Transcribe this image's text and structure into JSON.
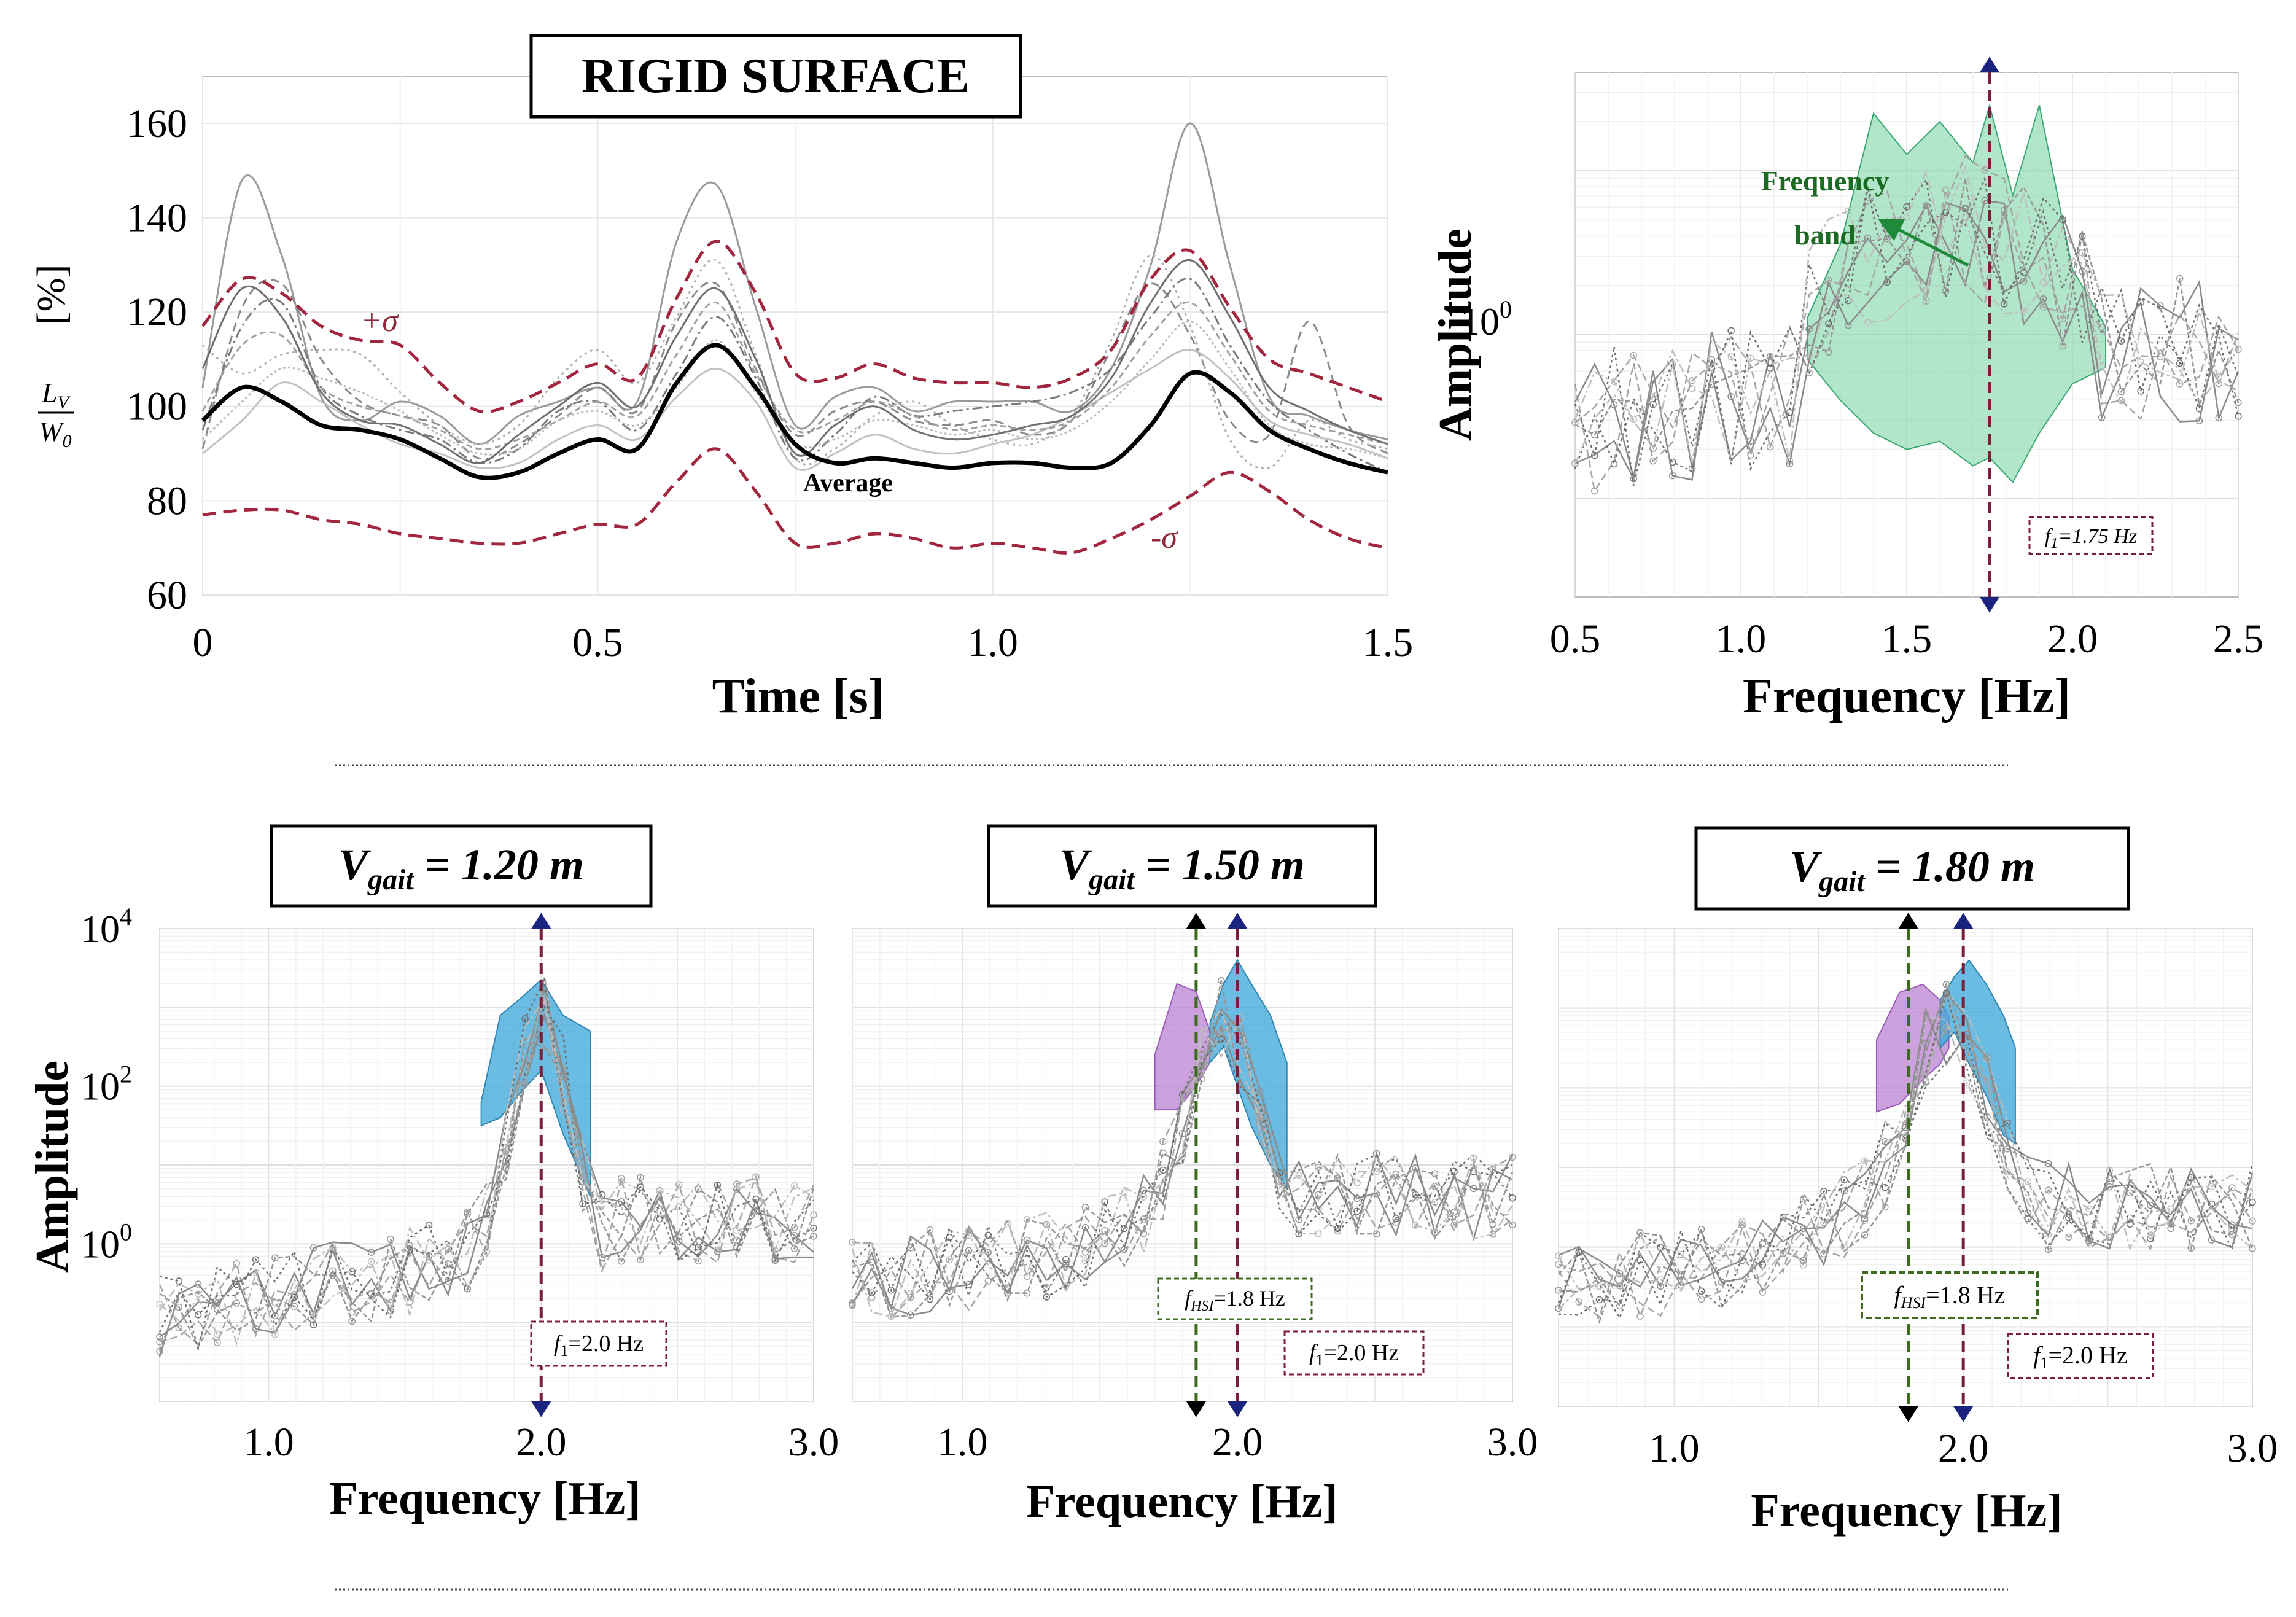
{
  "chart_data": [
    {
      "id": "time-history",
      "type": "line",
      "title": "RIGID SURFACE",
      "xlabel": "Time [s]",
      "ylabel_main": "L_V / W_0",
      "ylabel_num": "L",
      "ylabel_num_sub": "V",
      "ylabel_den": "W",
      "ylabel_den_sub": "0",
      "ylabel_unit": "[%]",
      "xlim": [
        0,
        1.5
      ],
      "ylim": [
        60,
        170
      ],
      "xticks": [
        "0",
        "0.5",
        "1.0",
        "1.5"
      ],
      "xtick_values": [
        0,
        0.5,
        1.0,
        1.5
      ],
      "yticks": [
        "60",
        "80",
        "100",
        "120",
        "140",
        "160"
      ],
      "ytick_values": [
        60,
        80,
        100,
        120,
        140,
        160
      ],
      "x": [
        0,
        0.05,
        0.1,
        0.15,
        0.2,
        0.25,
        0.3,
        0.35,
        0.4,
        0.45,
        0.5,
        0.55,
        0.6,
        0.65,
        0.7,
        0.75,
        0.8,
        0.85,
        0.9,
        0.95,
        1.0,
        1.05,
        1.1,
        1.15,
        1.2,
        1.25,
        1.3,
        1.35,
        1.4,
        1.45,
        1.5
      ],
      "average": {
        "name": "Average",
        "values": [
          97,
          104,
          101,
          96,
          95,
          93,
          89,
          85,
          86,
          90,
          93,
          91,
          105,
          113,
          104,
          92,
          88,
          89,
          88,
          87,
          88,
          88,
          87,
          88,
          96,
          107,
          103,
          95,
          91,
          88,
          86
        ]
      },
      "upper": {
        "name": "+σ",
        "values": [
          117,
          127,
          124,
          117,
          114,
          113,
          105,
          99,
          101,
          105,
          109,
          106,
          123,
          135,
          124,
          107,
          106,
          109,
          106,
          105,
          105,
          104,
          106,
          112,
          127,
          133,
          121,
          110,
          107,
          104,
          101
        ]
      },
      "lower": {
        "name": "-σ",
        "values": [
          77,
          78,
          78,
          76,
          75,
          73,
          72,
          71,
          71,
          73,
          75,
          75,
          84,
          91,
          82,
          71,
          71,
          73,
          72,
          70,
          71,
          70,
          69,
          72,
          76,
          81,
          86,
          82,
          76,
          72,
          70
        ]
      },
      "gray_series": [
        [
          104,
          148,
          132,
          102,
          97,
          101,
          98,
          92,
          98,
          101,
          104,
          101,
          135,
          147,
          121,
          96,
          102,
          104,
          99,
          101,
          101,
          101,
          99,
          108,
          130,
          160,
          130,
          102,
          98,
          95,
          93
        ],
        [
          91,
          121,
          126,
          110,
          101,
          98,
          96,
          89,
          92,
          98,
          104,
          99,
          118,
          126,
          108,
          94,
          99,
          101,
          97,
          96,
          97,
          94,
          97,
          112,
          126,
          115,
          97,
          94,
          118,
          96,
          90
        ],
        [
          113,
          107,
          111,
          112,
          111,
          103,
          96,
          92,
          96,
          106,
          112,
          105,
          119,
          131,
          111,
          89,
          91,
          98,
          101,
          96,
          93,
          92,
          98,
          114,
          132,
          117,
          93,
          87,
          97,
          93,
          91
        ],
        [
          95,
          117,
          122,
          104,
          98,
          95,
          93,
          88,
          91,
          99,
          101,
          95,
          107,
          119,
          106,
          89,
          94,
          102,
          98,
          99,
          100,
          101,
          103,
          108,
          119,
          127,
          113,
          101,
          95,
          90,
          86
        ],
        [
          90,
          97,
          105,
          101,
          96,
          92,
          90,
          87,
          88,
          93,
          96,
          93,
          102,
          108,
          101,
          87,
          90,
          94,
          91,
          90,
          92,
          94,
          98,
          103,
          108,
          112,
          106,
          97,
          94,
          92,
          89
        ],
        [
          99,
          113,
          115,
          104,
          100,
          98,
          95,
          91,
          93,
          97,
          101,
          98,
          111,
          122,
          107,
          95,
          97,
          101,
          98,
          95,
          96,
          95,
          97,
          104,
          115,
          122,
          111,
          99,
          96,
          94,
          92
        ],
        [
          93,
          101,
          108,
          106,
          103,
          99,
          94,
          90,
          91,
          97,
          99,
          96,
          104,
          114,
          103,
          92,
          93,
          97,
          96,
          94,
          95,
          93,
          95,
          101,
          110,
          118,
          108,
          96,
          92,
          91,
          89
        ],
        [
          108,
          125,
          119,
          103,
          97,
          96,
          92,
          88,
          94,
          100,
          105,
          100,
          115,
          125,
          110,
          90,
          96,
          100,
          95,
          93,
          94,
          96,
          98,
          106,
          122,
          131,
          119,
          104,
          99,
          95,
          92
        ]
      ],
      "annotations": {
        "average_label": "Average",
        "plus_sigma": "+σ",
        "minus_sigma": "-σ"
      }
    },
    {
      "id": "rigid-spectrum",
      "type": "line",
      "xlabel": "Frequency [Hz]",
      "ylabel": "Amplitude",
      "xlim": [
        0.5,
        2.5
      ],
      "xticks": [
        "0.5",
        "1.0",
        "1.5",
        "2.0",
        "2.5"
      ],
      "xtick_values": [
        0.5,
        1.0,
        1.5,
        2.0,
        2.5
      ],
      "ytick_label": "10",
      "ytick_exp": "0",
      "band_label_1": "Frequency",
      "band_label_2": "band",
      "f1_label": "f",
      "f1_sub": "1",
      "f1_value": "=1.75 Hz",
      "f1": 1.75,
      "band_range": [
        1.2,
        2.1
      ]
    },
    {
      "id": "spectrum-120",
      "type": "line",
      "title_main": "V",
      "title_sub": "gait",
      "title_value": "= 1.20 m",
      "xlabel": "Frequency [Hz]",
      "ylabel": "Amplitude",
      "xlim": [
        0.6,
        3.0
      ],
      "xticks": [
        "1.0",
        "2.0",
        "3.0"
      ],
      "xtick_values": [
        1.0,
        2.0,
        3.0
      ],
      "ylim_exp": [
        -2,
        4
      ],
      "ytick_exps": [
        "0",
        "2",
        "4"
      ],
      "ytick_values": [
        0,
        2,
        4
      ],
      "ytick_base": "10",
      "f1_label": "f",
      "f1_sub": "1",
      "f1_value": "=2.0 Hz",
      "f1": 2.0
    },
    {
      "id": "spectrum-150",
      "type": "line",
      "title_main": "V",
      "title_sub": "gait",
      "title_value": "= 1.50 m",
      "xlabel": "Frequency [Hz]",
      "xlim": [
        0.6,
        3.0
      ],
      "xticks": [
        "1.0",
        "2.0",
        "3.0"
      ],
      "xtick_values": [
        1.0,
        2.0,
        3.0
      ],
      "ylim_exp": [
        -2,
        4
      ],
      "f1_label": "f",
      "f1_sub": "1",
      "f1_value": "=2.0 Hz",
      "f1": 2.0,
      "fhsi_label": "f",
      "fhsi_sub": "HSI",
      "fhsi_value": "=1.8 Hz",
      "fhsi": 1.85
    },
    {
      "id": "spectrum-180",
      "type": "line",
      "title_main": "V",
      "title_sub": "gait",
      "title_value": "= 1.80 m",
      "xlabel": "Frequency [Hz]",
      "xlim": [
        0.6,
        3.0
      ],
      "xticks": [
        "1.0",
        "2.0",
        "3.0"
      ],
      "xtick_values": [
        1.0,
        2.0,
        3.0
      ],
      "ylim_exp": [
        -2,
        4
      ],
      "f1_label": "f",
      "f1_sub": "1",
      "f1_value": "=2.0 Hz",
      "f1": 2.0,
      "fhsi_label": "f",
      "fhsi_sub": "HSI",
      "fhsi_value": "=1.8 Hz",
      "fhsi": 1.81
    }
  ],
  "colors": {
    "average": "#000000",
    "sigma": "#a3263f",
    "gray": "#8a8a8a",
    "band_green": "#7fd6a8",
    "band_green_edge": "#3aa872",
    "band_blue": "#3aa6d8",
    "band_purple": "#b57ad0",
    "f1_line": "#7a1e3a",
    "fhsi_line": "#3d6b1e",
    "marker_blue": "#1a237e",
    "arrow_green": "#1f8a3a",
    "band_text": "#1b6b23"
  }
}
